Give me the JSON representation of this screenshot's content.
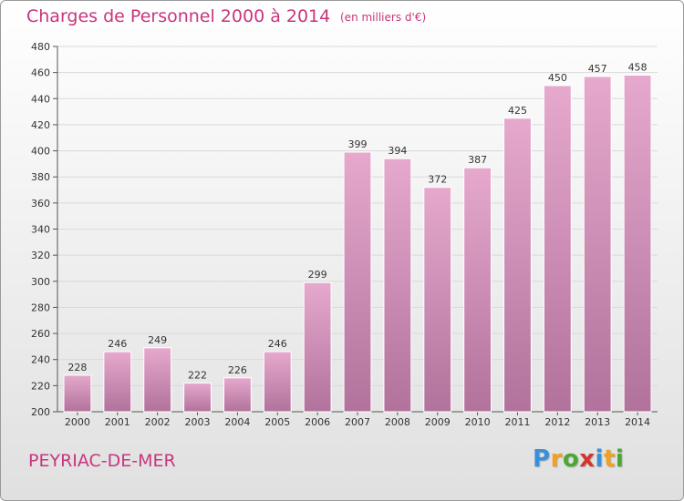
{
  "title": "Charges de Personnel 2000 à 2014",
  "subtitle": "(en milliers d'€)",
  "commune": "PEYRIAC-DE-MER",
  "logo": {
    "letters": [
      "P",
      "r",
      "o",
      "x",
      "i",
      "t",
      "i"
    ],
    "colors": [
      "#3a8fd6",
      "#f2a01d",
      "#4aa832",
      "#d8332b",
      "#3a8fd6",
      "#f2a01d",
      "#4aa832"
    ]
  },
  "colors": {
    "title": "#c8367e",
    "bar_light": "#e6a9cd",
    "bar_dark": "#b1729b",
    "grid": "#d9d9d9"
  },
  "chart_data": {
    "type": "bar",
    "categories": [
      "2000",
      "2001",
      "2002",
      "2003",
      "2004",
      "2005",
      "2006",
      "2007",
      "2008",
      "2009",
      "2010",
      "2011",
      "2012",
      "2013",
      "2014"
    ],
    "values": [
      228,
      246,
      249,
      222,
      226,
      246,
      299,
      399,
      394,
      372,
      387,
      425,
      450,
      457,
      458
    ],
    "ylim": [
      200,
      480
    ],
    "yticks": [
      200,
      220,
      240,
      260,
      280,
      300,
      320,
      340,
      360,
      380,
      400,
      420,
      440,
      460,
      480
    ],
    "grid": true,
    "xlabel": "",
    "ylabel": ""
  }
}
